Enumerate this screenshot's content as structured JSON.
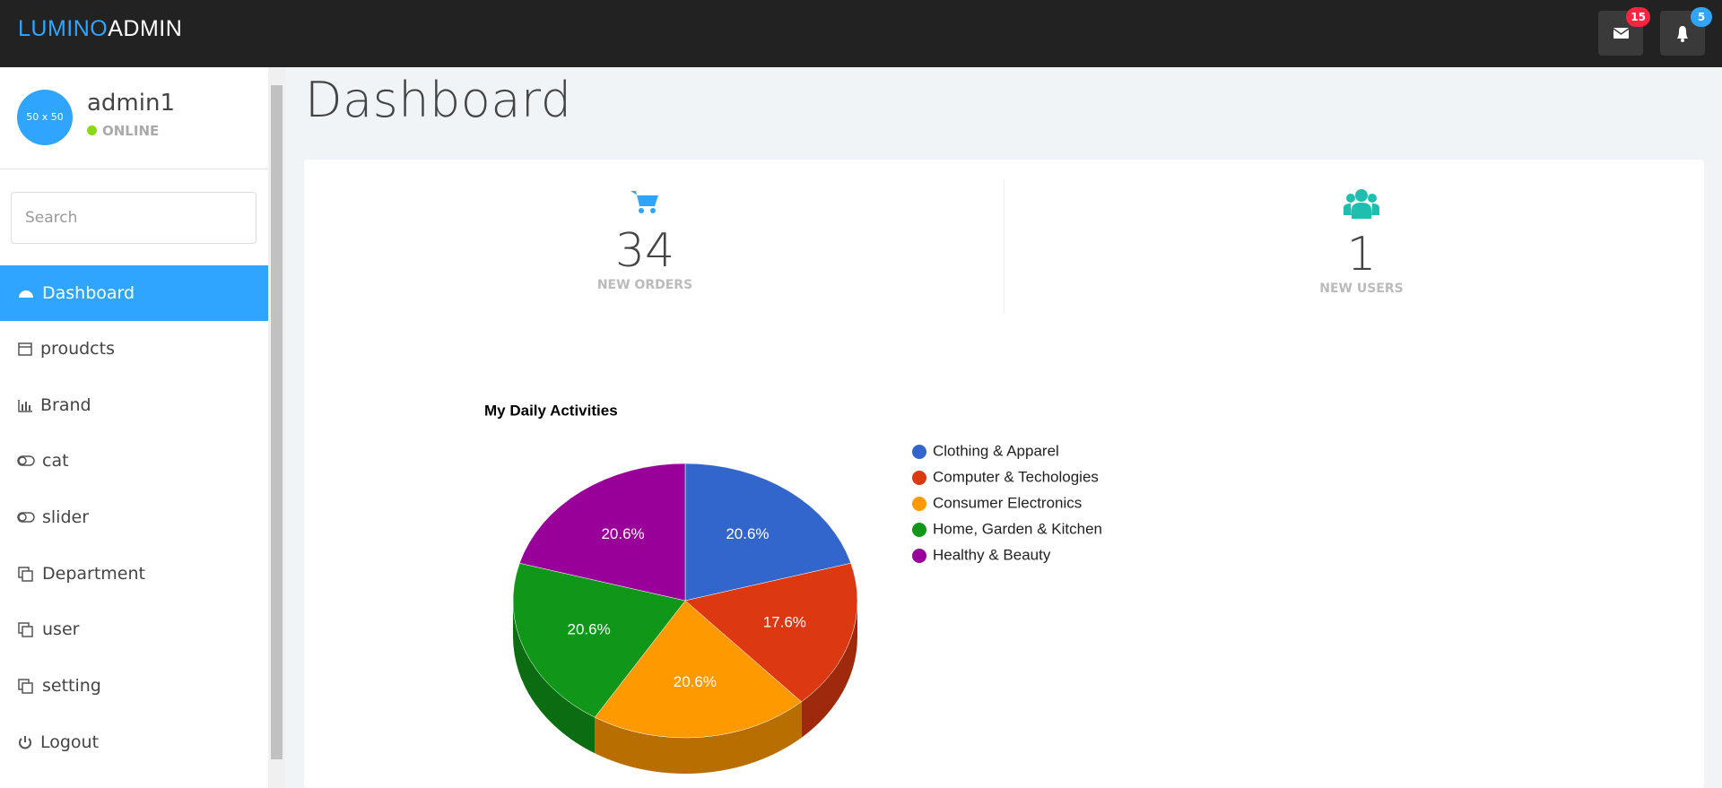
{
  "header": {
    "brand_part1": "LUMINO",
    "brand_part2": "ADMIN",
    "messages_badge": 15,
    "alerts_badge": 5
  },
  "sidebar": {
    "avatar": "50 x 50",
    "username": "admin1",
    "status": "ONLINE",
    "search_placeholder": "Search",
    "menu": [
      "Dashboard",
      "proudcts",
      "Brand",
      "cat",
      "slider",
      "Department",
      "user",
      "setting",
      "Logout"
    ]
  },
  "main": {
    "title": "Dashboard",
    "stats": [
      {
        "value": 34,
        "label": "NEW ORDERS"
      },
      {
        "value": 1,
        "label": "NEW USERS"
      }
    ]
  },
  "chart_data": {
    "type": "pie",
    "title": "My Daily Activities",
    "categories": [
      "Clothing & Apparel",
      "Computer & Techologies",
      "Consumer Electronics",
      "Home, Garden & Kitchen",
      "Healthy & Beauty"
    ],
    "values": [
      20.6,
      17.6,
      20.6,
      20.6,
      20.6
    ],
    "value_labels": [
      "20.6%",
      "17.6%",
      "20.6%",
      "20.6%",
      "20.6%"
    ],
    "colors": [
      "#3366cc",
      "#dc3912",
      "#ff9900",
      "#109618",
      "#990099"
    ],
    "legend": "right"
  }
}
